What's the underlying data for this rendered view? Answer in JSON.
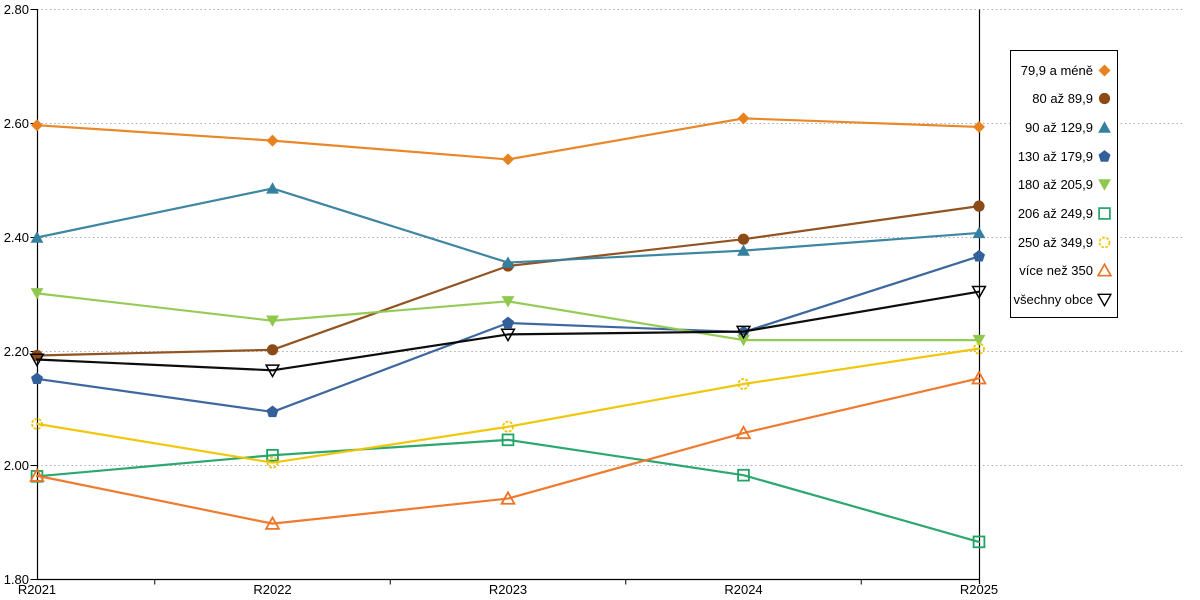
{
  "chart_data": {
    "type": "line",
    "title": "",
    "xlabel": "",
    "ylabel": "",
    "categories": [
      "R2021",
      "R2022",
      "R2023",
      "R2024",
      "R2025"
    ],
    "series": [
      {
        "name": "79,9 a méně",
        "marker": "diamond",
        "fill": "filled",
        "color": "#E8821F",
        "values": [
          2.597,
          2.57,
          2.537,
          2.609,
          2.594
        ]
      },
      {
        "name": "80 až 89,9",
        "marker": "circle",
        "fill": "filled",
        "color": "#8C4B16",
        "values": [
          2.193,
          2.203,
          2.35,
          2.397,
          2.455
        ]
      },
      {
        "name": "90 až 129,9",
        "marker": "triangle-up",
        "fill": "filled",
        "color": "#35809E",
        "values": [
          2.4,
          2.486,
          2.356,
          2.377,
          2.408
        ]
      },
      {
        "name": "130 až 179,9",
        "marker": "pentagon",
        "fill": "filled",
        "color": "#33609A",
        "values": [
          2.152,
          2.094,
          2.25,
          2.234,
          2.367
        ]
      },
      {
        "name": "180 až 205,9",
        "marker": "triangle-down",
        "fill": "filled",
        "color": "#90C84E",
        "values": [
          2.302,
          2.254,
          2.288,
          2.22,
          2.22
        ]
      },
      {
        "name": "206 až 249,9",
        "marker": "square",
        "fill": "open",
        "color": "#21A366",
        "values": [
          1.981,
          2.018,
          2.045,
          1.983,
          1.866
        ]
      },
      {
        "name": "250 až 349,9",
        "marker": "circle",
        "fill": "open",
        "color": "#F0C400",
        "values": [
          2.073,
          2.005,
          2.068,
          2.143,
          2.205
        ]
      },
      {
        "name": "více než 350",
        "marker": "triangle-up",
        "fill": "open",
        "color": "#EE7425",
        "values": [
          1.982,
          1.898,
          1.942,
          2.057,
          2.153
        ]
      },
      {
        "name": "všechny obce",
        "marker": "triangle-down",
        "fill": "open",
        "color": "#000000",
        "values": [
          2.186,
          2.167,
          2.23,
          2.235,
          2.305
        ]
      }
    ],
    "ylim": [
      1.8,
      2.8
    ],
    "yticks": [
      1.8,
      2.0,
      2.2,
      2.4,
      2.6,
      2.8
    ],
    "ytick_labels": [
      "1.80",
      "2.00",
      "2.20",
      "2.40",
      "2.60",
      "2.80"
    ],
    "grid": "horizontal-dotted",
    "legend_position": "right",
    "colors": {
      "gridline": "#ADADAD",
      "axis": "#000000",
      "background": "#FFFFFF"
    }
  }
}
